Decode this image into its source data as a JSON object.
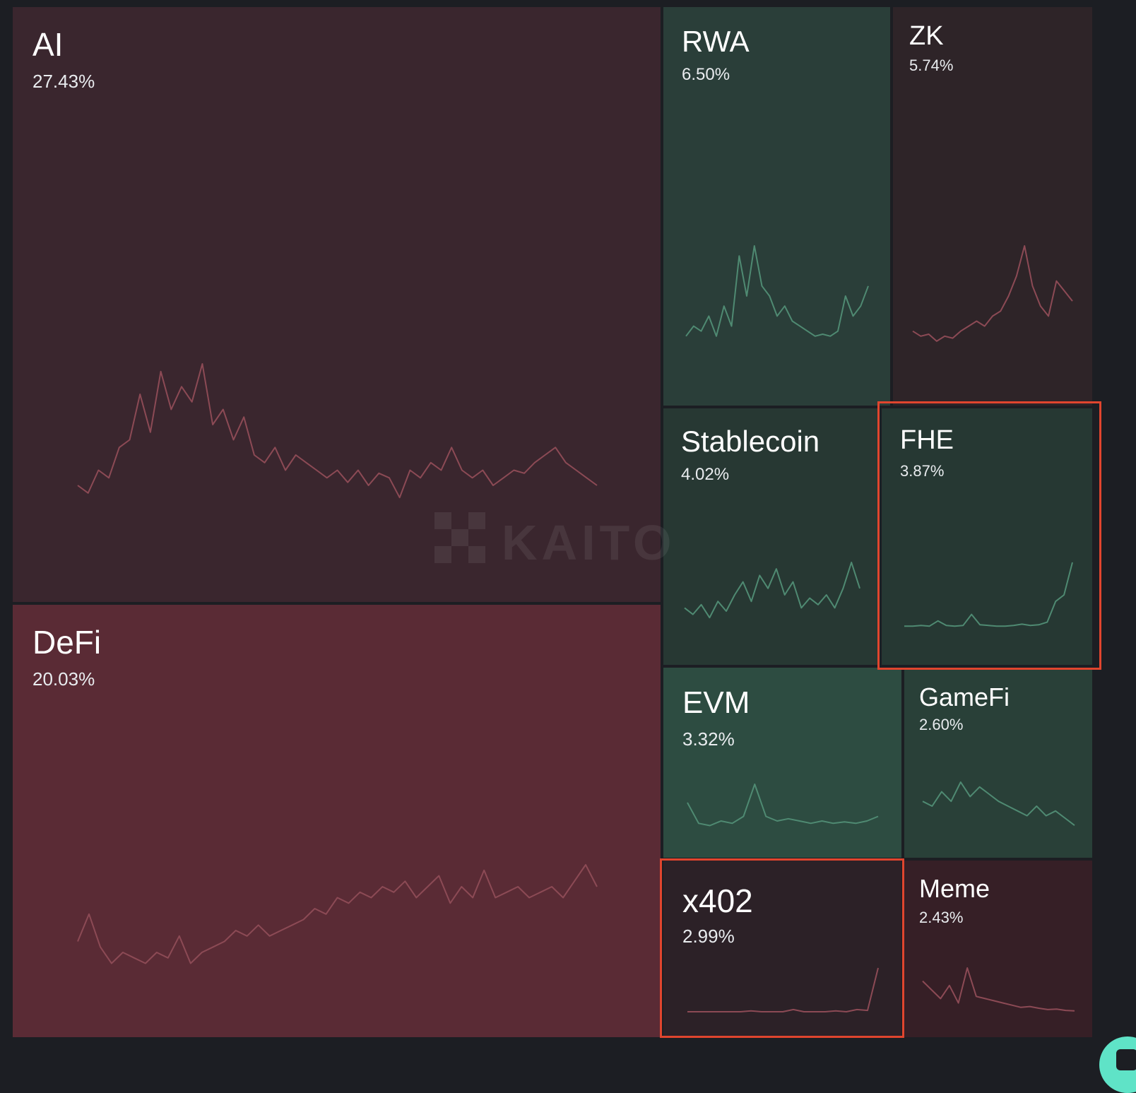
{
  "colors": {
    "background": "#1c1e23",
    "negative_line": "#8c4a55",
    "positive_line": "#4f8a72",
    "highlight_border": "#e0452e",
    "corner_button": "#5fe3c7"
  },
  "watermark": {
    "text": "KAITO"
  },
  "tiles": [
    {
      "name": "AI",
      "pct": "27.43%",
      "trend": "negative",
      "series": [
        0.2,
        0.15,
        0.3,
        0.25,
        0.45,
        0.5,
        0.8,
        0.55,
        0.95,
        0.7,
        0.85,
        0.75,
        1.0,
        0.6,
        0.7,
        0.5,
        0.65,
        0.4,
        0.35,
        0.45,
        0.3,
        0.4,
        0.35,
        0.3,
        0.25,
        0.3,
        0.22,
        0.3,
        0.2,
        0.28,
        0.25,
        0.12,
        0.3,
        0.25,
        0.35,
        0.3,
        0.45,
        0.3,
        0.25,
        0.3,
        0.2,
        0.25,
        0.3,
        0.28,
        0.35,
        0.4,
        0.45,
        0.35,
        0.3,
        0.25,
        0.2
      ]
    },
    {
      "name": "DeFi",
      "pct": "20.03%",
      "trend": "negative",
      "series": [
        0.3,
        0.55,
        0.25,
        0.1,
        0.2,
        0.15,
        0.1,
        0.2,
        0.15,
        0.35,
        0.1,
        0.2,
        0.25,
        0.3,
        0.4,
        0.35,
        0.45,
        0.35,
        0.4,
        0.45,
        0.5,
        0.6,
        0.55,
        0.7,
        0.65,
        0.75,
        0.7,
        0.8,
        0.75,
        0.85,
        0.7,
        0.8,
        0.9,
        0.65,
        0.8,
        0.7,
        0.95,
        0.7,
        0.75,
        0.8,
        0.7,
        0.75,
        0.8,
        0.7,
        0.85,
        1.0,
        0.8
      ]
    },
    {
      "name": "RWA",
      "pct": "6.50%",
      "trend": "positive",
      "series": [
        0.1,
        0.2,
        0.15,
        0.3,
        0.1,
        0.4,
        0.2,
        0.9,
        0.5,
        1.0,
        0.6,
        0.5,
        0.3,
        0.4,
        0.25,
        0.2,
        0.15,
        0.1,
        0.12,
        0.1,
        0.15,
        0.5,
        0.3,
        0.4,
        0.6
      ]
    },
    {
      "name": "ZK",
      "pct": "5.74%",
      "trend": "negative",
      "series": [
        0.15,
        0.1,
        0.12,
        0.05,
        0.1,
        0.08,
        0.15,
        0.2,
        0.25,
        0.2,
        0.3,
        0.35,
        0.5,
        0.7,
        1.0,
        0.6,
        0.4,
        0.3,
        0.65,
        0.55,
        0.45
      ]
    },
    {
      "name": "Stablecoin",
      "pct": "4.02%",
      "trend": "positive",
      "series": [
        0.3,
        0.2,
        0.35,
        0.15,
        0.4,
        0.25,
        0.5,
        0.7,
        0.4,
        0.8,
        0.6,
        0.9,
        0.5,
        0.7,
        0.3,
        0.45,
        0.35,
        0.5,
        0.3,
        0.6,
        1.0,
        0.6
      ]
    },
    {
      "name": "FHE",
      "pct": "3.87%",
      "trend": "positive",
      "series": [
        0.02,
        0.02,
        0.03,
        0.02,
        0.1,
        0.03,
        0.02,
        0.03,
        0.2,
        0.04,
        0.03,
        0.02,
        0.02,
        0.03,
        0.05,
        0.03,
        0.04,
        0.08,
        0.4,
        0.5,
        1.0
      ]
    },
    {
      "name": "EVM",
      "pct": "3.32%",
      "trend": "positive",
      "series": [
        0.6,
        0.15,
        0.1,
        0.2,
        0.15,
        0.3,
        1.0,
        0.3,
        0.2,
        0.25,
        0.2,
        0.15,
        0.2,
        0.15,
        0.18,
        0.15,
        0.2,
        0.3
      ]
    },
    {
      "name": "GameFi",
      "pct": "2.60%",
      "trend": "positive",
      "series": [
        0.6,
        0.5,
        0.8,
        0.6,
        1.0,
        0.7,
        0.9,
        0.75,
        0.6,
        0.5,
        0.4,
        0.3,
        0.5,
        0.3,
        0.4,
        0.25,
        0.1
      ]
    },
    {
      "name": "x402",
      "pct": "2.99%",
      "trend": "negative",
      "series": [
        0,
        0,
        0,
        0,
        0,
        0,
        0.02,
        0,
        0,
        0,
        0.05,
        0,
        0,
        0,
        0.02,
        0,
        0.05,
        0.03,
        1.0
      ]
    },
    {
      "name": "Meme",
      "pct": "2.43%",
      "trend": "negative",
      "series": [
        0.7,
        0.5,
        0.3,
        0.6,
        0.2,
        1.0,
        0.35,
        0.3,
        0.25,
        0.2,
        0.15,
        0.1,
        0.12,
        0.08,
        0.05,
        0.06,
        0.03,
        0.02
      ]
    }
  ]
}
